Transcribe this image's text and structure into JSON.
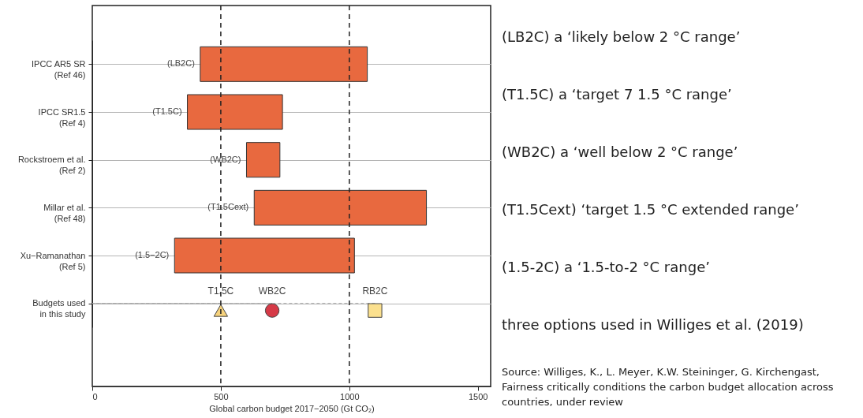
{
  "chart_data": {
    "type": "bar",
    "orientation": "horizontal",
    "xlabel": "Global carbon budget 2017−2050 (Gt CO₂)",
    "categories": [
      "IPCC AR5 SR\n(Ref 46)",
      "IPCC SR1.5\n(Ref 4)",
      "Rockstroem et al.\n(Ref 2)",
      "Millar et al.\n(Ref 48)",
      "Xu−Ramanathan\n(Ref 5)",
      "Budgets used\nin this study"
    ],
    "series": [
      {
        "type": "bar",
        "color": "#e8693f",
        "base": [
          420,
          370,
          600,
          630,
          320,
          null
        ],
        "values": [
          650,
          370,
          130,
          670,
          700,
          null
        ]
      },
      {
        "type": "scatter",
        "name": "T1.5C",
        "color": "#f6d27c",
        "marker": "triangle",
        "values": [
          null,
          null,
          null,
          null,
          null,
          500
        ]
      },
      {
        "type": "scatter",
        "name": "WB2C",
        "color": "#d63a47",
        "marker": "circle",
        "values": [
          null,
          null,
          null,
          null,
          null,
          700
        ]
      },
      {
        "type": "scatter",
        "name": "RB2C",
        "color": "#fbe08e",
        "marker": "square",
        "values": [
          null,
          null,
          null,
          null,
          null,
          1100
        ]
      }
    ],
    "xlim": [
      0,
      1550
    ],
    "xticks": [
      0,
      500,
      1000,
      1500
    ],
    "grid": "y",
    "ref_lines": [
      {
        "axis": "x",
        "value": 500,
        "color": "#222222",
        "line_style": "dashed"
      },
      {
        "axis": "x",
        "value": 1000,
        "color": "#222222",
        "line_style": "dashed"
      }
    ],
    "annotations": [
      "(LB2C)",
      "(T1.5C)",
      "(WB2C)",
      "(T1.5Cext)",
      "(1.5−2C)",
      "(LB2C) a ‘likely below 2 °C range’",
      "(T1.5C) a ‘target 7 1.5 °C range’",
      "(WB2C) a ‘well below 2 °C range’",
      "(T1.5Cext) ‘target 1.5 °C extended range’",
      "(1.5-2C) a ‘1.5-to-2 °C range’",
      "three options used in Williges et al. (2019)",
      "Source: Williges, K., L. Meyer, K.W. Steininger, G. Kirchengast, Fairness critically conditions the carbon budget allocation across countries, under review"
    ]
  }
}
